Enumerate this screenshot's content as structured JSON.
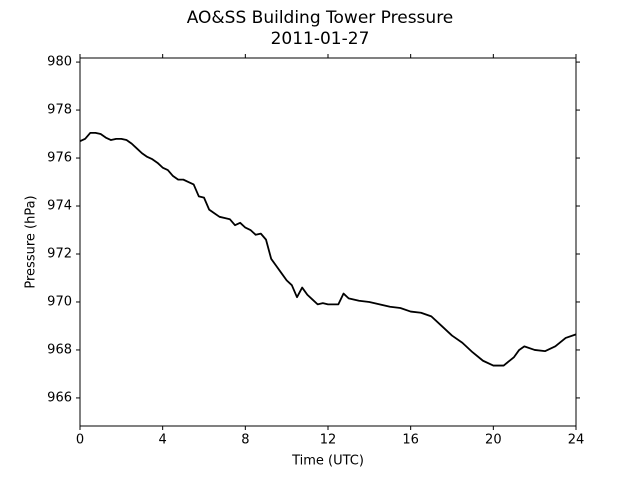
{
  "chart_data": {
    "type": "line",
    "title": "AO&SS Building Tower Pressure",
    "subtitle": "2011-01-27",
    "x_label": "Time (UTC)",
    "y_label": "Pressure (hPa)",
    "x": [
      0,
      0.25,
      0.5,
      0.75,
      1,
      1.25,
      1.5,
      1.75,
      2,
      2.25,
      2.5,
      2.75,
      3,
      3.25,
      3.5,
      3.75,
      4,
      4.25,
      4.5,
      4.75,
      5,
      5.25,
      5.5,
      5.75,
      6,
      6.25,
      6.5,
      6.75,
      7,
      7.25,
      7.5,
      7.75,
      8,
      8.25,
      8.5,
      8.75,
      9,
      9.25,
      9.5,
      9.75,
      10,
      10.25,
      10.5,
      10.75,
      11,
      11.25,
      11.5,
      11.75,
      12,
      12.25,
      12.5,
      12.75,
      13,
      13.5,
      14,
      14.5,
      15,
      15.5,
      16,
      16.5,
      17,
      17.5,
      18,
      18.5,
      19,
      19.5,
      20,
      20.5,
      21,
      21.25,
      21.5,
      22,
      22.5,
      23,
      23.5,
      24
    ],
    "series": [
      {
        "name": "Pressure",
        "color": "#000000",
        "values": [
          976.7,
          976.8,
          977.05,
          977.05,
          977.0,
          976.85,
          976.75,
          976.8,
          976.8,
          976.75,
          976.6,
          976.4,
          976.2,
          976.05,
          975.95,
          975.8,
          975.6,
          975.5,
          975.25,
          975.1,
          975.1,
          975.0,
          974.9,
          974.4,
          974.35,
          973.85,
          973.7,
          973.55,
          973.5,
          973.45,
          973.2,
          973.3,
          973.1,
          973.0,
          972.8,
          972.85,
          972.6,
          971.8,
          971.5,
          971.2,
          970.9,
          970.7,
          970.2,
          970.6,
          970.3,
          970.1,
          969.9,
          969.95,
          969.9,
          969.9,
          969.9,
          970.35,
          970.15,
          970.05,
          970.0,
          969.9,
          969.8,
          969.75,
          969.6,
          969.55,
          969.4,
          969.0,
          968.6,
          968.3,
          967.9,
          967.55,
          967.35,
          967.35,
          967.7,
          968.0,
          968.15,
          968.0,
          967.95,
          968.15,
          968.5,
          968.65
        ]
      }
    ],
    "xlim": [
      0,
      24
    ],
    "xticks": [
      0,
      4,
      8,
      12,
      16,
      20,
      24
    ],
    "ylim": [
      964.83,
      980.17
    ],
    "yticks": [
      966,
      968,
      970,
      972,
      974,
      976,
      978,
      980
    ],
    "grid": false
  }
}
